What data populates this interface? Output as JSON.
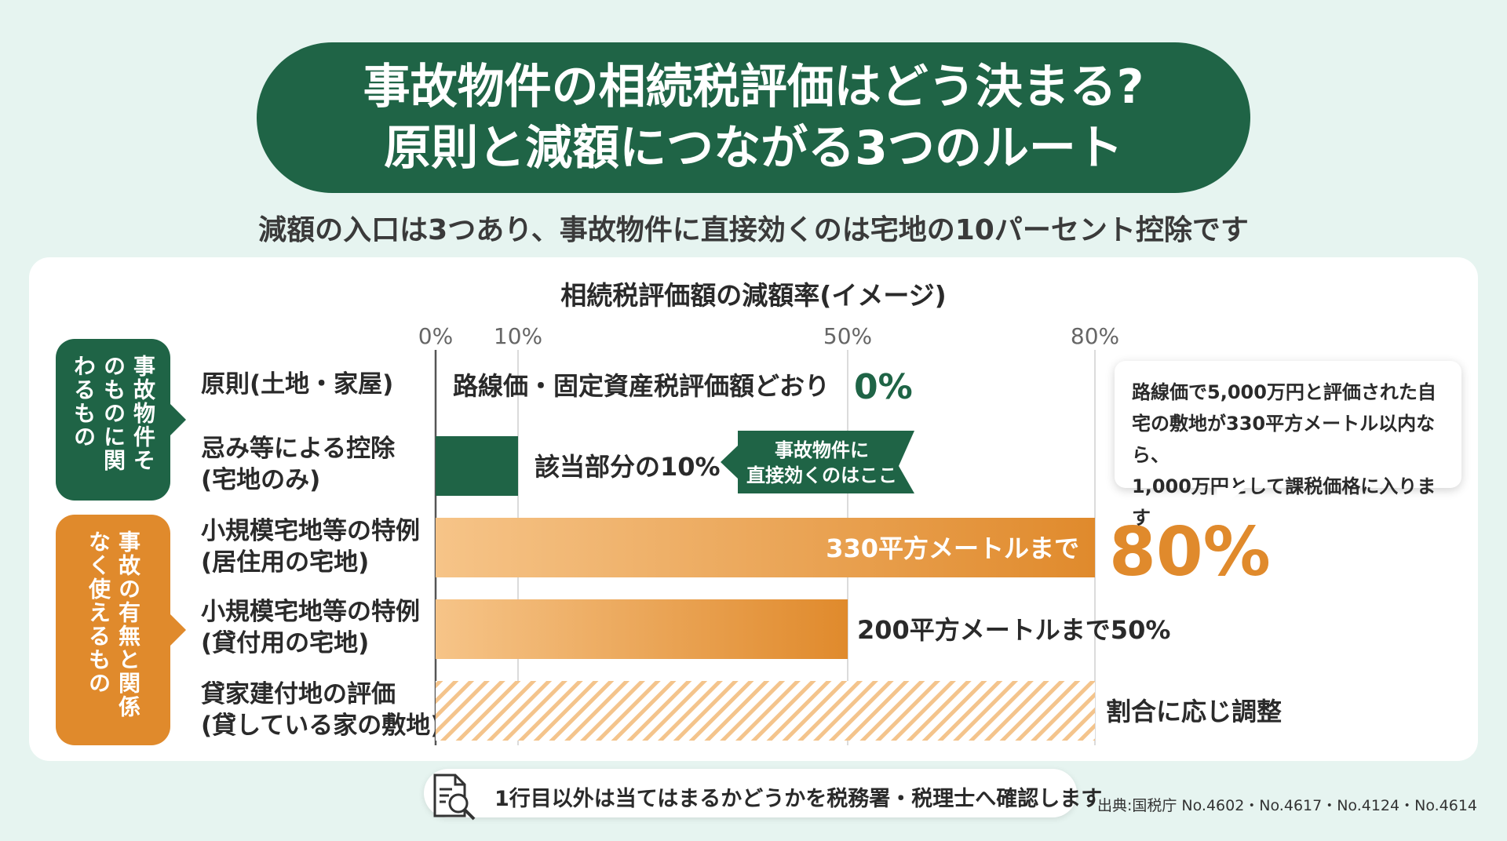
{
  "header": {
    "title_line1": "事故物件の相続税評価はどう決まる?",
    "title_line2": "原則と減額につながる3つのルート",
    "subtitle": "減額の入口は3つあり、事故物件に直接効くのは宅地の10パーセント控除です"
  },
  "groups": [
    {
      "label": "事故物件そのものに関わるもの",
      "color": "#1f6446"
    },
    {
      "label": "事故の有無と関係なく使えるもの",
      "color": "#e08a2c"
    }
  ],
  "rows": [
    {
      "line1": "原則(土地・家屋)",
      "line2": ""
    },
    {
      "line1": "忌み等による控除",
      "line2": "(宅地のみ)"
    },
    {
      "line1": "小規模宅地等の特例",
      "line2": "(居住用の宅地)"
    },
    {
      "line1": "小規模宅地等の特例",
      "line2": "(貸付用の宅地)"
    },
    {
      "line1": "貸家建付地の評価",
      "line2": "(貸している家の敷地)"
    }
  ],
  "chart_data": {
    "type": "bar",
    "orientation": "horizontal",
    "title": "相続税評価額の減額率(イメージ)",
    "x_ticks": [
      "0%",
      "10%",
      "50%",
      "80%"
    ],
    "xlim": [
      0,
      80
    ],
    "categories": [
      "原則(土地・家屋)",
      "忌み等による控除(宅地のみ)",
      "小規模宅地等の特例(居住用の宅地)",
      "小規模宅地等の特例(貸付用の宅地)",
      "貸家建付地の評価(貸している家の敷地)"
    ],
    "values": [
      0,
      10,
      80,
      50,
      null
    ],
    "bar_styles": [
      "none",
      "green",
      "orange",
      "orange",
      "hatched"
    ],
    "bar_colors": {
      "green": "#1f6446",
      "orange_start": "#f6c488",
      "orange_end": "#e08a2c",
      "hatch": "#f4c48c"
    },
    "hatched_range": [
      0,
      80
    ],
    "data_labels": {
      "row1_text": "路線価・固定資産税評価額どおり",
      "row1_value": "0%",
      "row2_text": "該当部分の10%",
      "row2_tag_line1": "事故物件に",
      "row2_tag_line2": "直接効くのはここ",
      "row3_inside": "330平方メートルまで",
      "row3_value": "80%",
      "row4_text": "200平方メートルまで50%",
      "row5_text": "割合に応じ調整"
    }
  },
  "callout": {
    "line1": "路線価で5,000万円と評価された自",
    "line2": "宅の敷地が330平方メートル以内なら、",
    "line3": "1,000万円として課税価格に入ります"
  },
  "footer": {
    "note": "1行目以外は当てはまるかどうかを税務署・税理士へ確認します",
    "source": "出典:国税庁 No.4602・No.4617・No.4124・No.4614",
    "note_icon": "document-search-icon"
  }
}
